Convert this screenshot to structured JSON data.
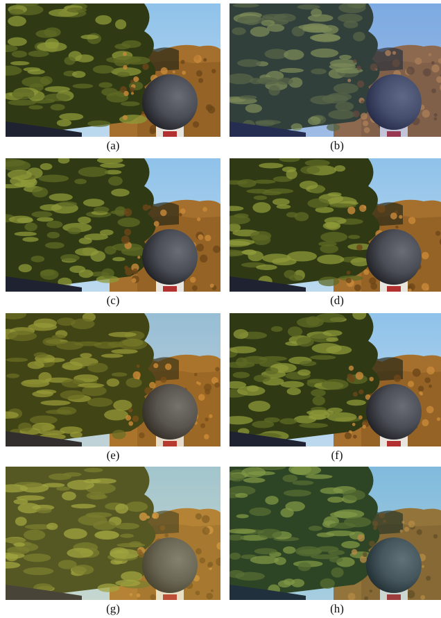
{
  "panels": [
    {
      "label": "(a)",
      "tint": "neutral"
    },
    {
      "label": "(b)",
      "tint": "blue"
    },
    {
      "label": "(c)",
      "tint": "neutral"
    },
    {
      "label": "(d)",
      "tint": "neutral"
    },
    {
      "label": "(e)",
      "tint": "warm"
    },
    {
      "label": "(f)",
      "tint": "neutral"
    },
    {
      "label": "(g)",
      "tint": "yellow"
    },
    {
      "label": "(h)",
      "tint": "cool"
    }
  ],
  "colors": {
    "sky": "#bcd9ee",
    "foliage_dark": "#2f3a14",
    "foliage_light": "#8f9a3a",
    "autumn": "#a5702e",
    "sphere": "#4a4d55"
  }
}
